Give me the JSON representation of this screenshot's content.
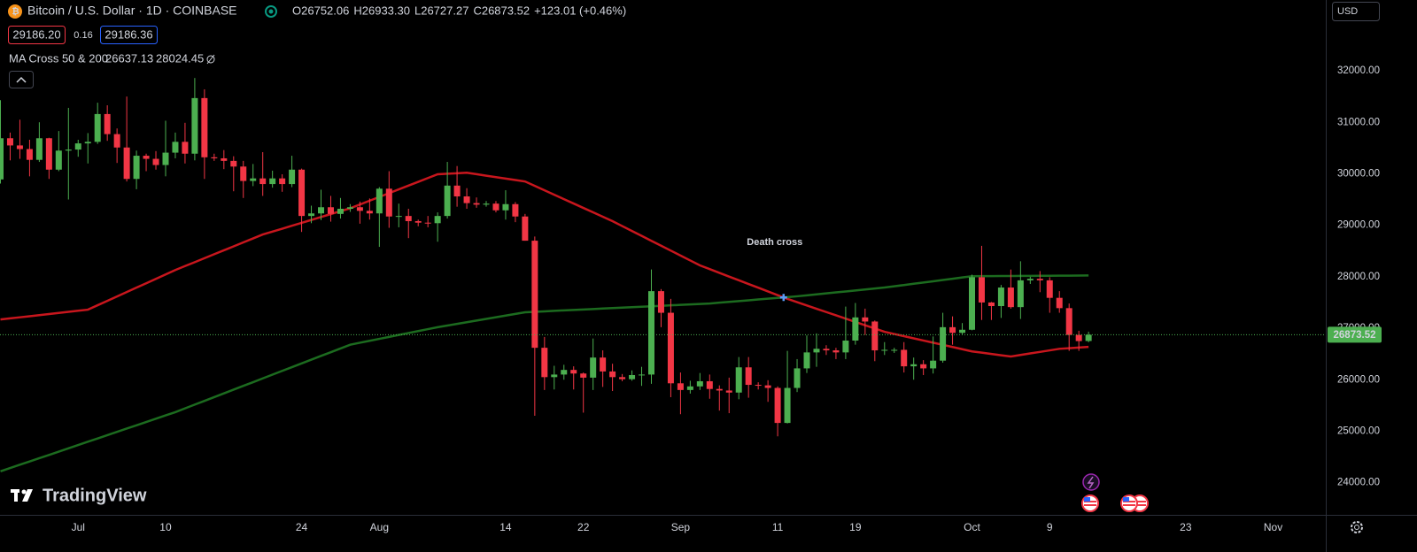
{
  "header": {
    "symbol": "Bitcoin / U.S. Dollar · 1D · COINBASE",
    "ohlc": [
      {
        "label": "O",
        "value": "26752.06"
      },
      {
        "label": "H",
        "value": "26933.30"
      },
      {
        "label": "L",
        "value": "26727.27"
      },
      {
        "label": "C",
        "value": "26873.52"
      }
    ],
    "change": "+123.01 (+0.46%)",
    "sell": "29186.20",
    "spread": "0.16",
    "buy": "29186.36",
    "currency": "USD",
    "brand": "TradingView",
    "indicator": "MA Cross 50 & 200"
  },
  "chart_data": {
    "type": "candlestick",
    "annotation": "Death cross",
    "up_color": "#4caf50",
    "down_color": "#f23645",
    "grid": false,
    "price_line": true,
    "ylim": [
      23375,
      33375
    ],
    "yticks": [
      {
        "value": 24000,
        "label": "24000.00"
      },
      {
        "value": 25000,
        "label": "25000.00"
      },
      {
        "value": 26000,
        "label": "26000.00"
      },
      {
        "value": 27000,
        "label": "27000.00"
      },
      {
        "value": 28000,
        "label": "28000.00"
      },
      {
        "value": 29000,
        "label": "29000.00"
      },
      {
        "value": 30000,
        "label": "30000.00"
      },
      {
        "value": 31000,
        "label": "31000.00"
      },
      {
        "value": 32000,
        "label": "32000.00"
      }
    ],
    "categories": [
      null,
      null,
      null,
      null,
      null,
      null,
      null,
      null,
      "Jul",
      null,
      null,
      null,
      null,
      null,
      null,
      null,
      null,
      "10",
      null,
      null,
      null,
      null,
      null,
      null,
      null,
      null,
      null,
      null,
      null,
      null,
      null,
      "24",
      null,
      null,
      null,
      null,
      null,
      null,
      null,
      "Aug",
      null,
      null,
      null,
      null,
      null,
      null,
      null,
      null,
      null,
      null,
      null,
      null,
      "14",
      null,
      null,
      null,
      null,
      null,
      null,
      null,
      "22",
      null,
      null,
      null,
      null,
      null,
      null,
      null,
      null,
      null,
      "Sep",
      null,
      null,
      null,
      null,
      null,
      null,
      null,
      null,
      null,
      "11",
      null,
      null,
      null,
      null,
      null,
      null,
      null,
      "19",
      null,
      null,
      null,
      null,
      null,
      null,
      null,
      null,
      null,
      null,
      null,
      "Oct",
      null,
      null,
      null,
      null,
      null,
      null,
      null,
      "9",
      null,
      null,
      null,
      null,
      null,
      null,
      null,
      null,
      null,
      null,
      null,
      null,
      null,
      "23",
      null,
      null,
      null,
      null,
      null,
      null,
      null,
      null,
      "Nov",
      null,
      null,
      null,
      null,
      null
    ],
    "open": [
      29890,
      30690,
      30550,
      30480,
      30270,
      30690,
      30080,
      30450,
      30470,
      30590,
      30620,
      31160,
      30770,
      30510,
      29900,
      30350,
      30290,
      30170,
      30410,
      30620,
      30390,
      31470,
      30320,
      30300,
      30250,
      30140,
      29860,
      29910,
      29800,
      29910,
      29800,
      30080,
      29180,
      29230,
      29350,
      29220,
      29320,
      29350,
      29280,
      29230,
      29710,
      29170,
      29180,
      29080,
      29050,
      29040,
      29180,
      29770,
      29560,
      29430,
      29400,
      29420,
      29290,
      29410,
      29170,
      28700,
      26620,
      26050,
      26100,
      26190,
      26120,
      26040,
      26430,
      26160,
      26050,
      26010,
      26090,
      26100,
      27720,
      27300,
      25930,
      25800,
      25870,
      25970,
      25820,
      25790,
      25750,
      26240,
      25900,
      25890,
      25840,
      25160,
      25840,
      26220,
      26530,
      26600,
      26570,
      26530,
      26760,
      27210,
      27130,
      26570,
      26580,
      26580,
      26260,
      26300,
      26220,
      26370,
      27020,
      26910,
      26970,
      27990,
      27500,
      27430,
      27790,
      27410,
      27930,
      27960,
      27930,
      27590,
      27390,
      26870,
      26752.06,
      null,
      null,
      null,
      null,
      null,
      null,
      null,
      null,
      null,
      null,
      null,
      null,
      null,
      null,
      null,
      null,
      null,
      null,
      null,
      null,
      null,
      null,
      null,
      null
    ],
    "high": [
      31430,
      30800,
      31050,
      30660,
      31000,
      30700,
      30830,
      31280,
      30660,
      30790,
      31380,
      31330,
      30880,
      31500,
      30450,
      30390,
      30440,
      31030,
      30800,
      30990,
      31860,
      31640,
      30390,
      30460,
      30340,
      30250,
      30190,
      30420,
      30060,
      29990,
      30350,
      30100,
      29380,
      29690,
      29570,
      29530,
      29410,
      29460,
      29520,
      29740,
      30050,
      29420,
      29320,
      29110,
      29180,
      29250,
      30230,
      30150,
      29720,
      29540,
      29470,
      29470,
      29680,
      29450,
      29220,
      28780,
      26830,
      26270,
      26290,
      26260,
      26140,
      26800,
      26570,
      26310,
      26110,
      26180,
      26250,
      28140,
      27760,
      27570,
      26140,
      25980,
      26130,
      26100,
      25890,
      26040,
      26440,
      26440,
      25950,
      25990,
      25870,
      26560,
      26400,
      26860,
      26900,
      26670,
      26620,
      27420,
      27490,
      27380,
      27150,
      26730,
      26620,
      26730,
      26430,
      26380,
      26840,
      27300,
      27230,
      27100,
      28040,
      28600,
      27510,
      27840,
      28140,
      28300,
      28000,
      28110,
      27990,
      27720,
      27480,
      26950,
      26933.3,
      null,
      null,
      null,
      null,
      null,
      null,
      null,
      null,
      null,
      null,
      null,
      null,
      null,
      null,
      null,
      null,
      null,
      null,
      null,
      null,
      null,
      null,
      null,
      null
    ],
    "low": [
      29810,
      30260,
      30290,
      29950,
      30230,
      29900,
      30050,
      29500,
      30330,
      30200,
      30580,
      30640,
      30210,
      29850,
      29700,
      30050,
      30080,
      29950,
      30300,
      30200,
      30260,
      29900,
      30250,
      30090,
      29660,
      29530,
      29760,
      29570,
      29730,
      29650,
      29740,
      28870,
      29040,
      29100,
      29070,
      29130,
      29260,
      29030,
      29110,
      28580,
      28950,
      28960,
      28750,
      28980,
      28960,
      28680,
      29130,
      29360,
      29320,
      29340,
      29360,
      29250,
      29110,
      29060,
      28700,
      25300,
      25800,
      25810,
      26000,
      25810,
      25360,
      25800,
      25860,
      25780,
      25970,
      25980,
      25880,
      25920,
      27020,
      25660,
      25330,
      25730,
      25800,
      25630,
      25400,
      25350,
      25620,
      25650,
      25810,
      25570,
      24900,
      25150,
      25760,
      26130,
      26250,
      26480,
      26400,
      26400,
      26680,
      26870,
      26360,
      26480,
      26520,
      26140,
      26000,
      26090,
      26120,
      26330,
      26680,
      26880,
      26960,
      27160,
      27160,
      27200,
      27380,
      27180,
      27860,
      27700,
      27300,
      27300,
      26560,
      26560,
      26727.27,
      null,
      null,
      null,
      null,
      null,
      null,
      null,
      null,
      null,
      null,
      null,
      null,
      null,
      null,
      null,
      null,
      null,
      null,
      null,
      null,
      null,
      null,
      null,
      null
    ],
    "close": [
      30690,
      30550,
      30480,
      30270,
      30690,
      30080,
      30450,
      30470,
      30590,
      30620,
      31160,
      30770,
      30510,
      29900,
      30350,
      30290,
      30170,
      30410,
      30620,
      30390,
      31470,
      30320,
      30300,
      30250,
      30140,
      29860,
      29910,
      29800,
      29910,
      29800,
      30080,
      29180,
      29230,
      29350,
      29220,
      29320,
      29350,
      29280,
      29230,
      29710,
      29170,
      29180,
      29080,
      29050,
      29040,
      29180,
      29770,
      29560,
      29430,
      29400,
      29420,
      29290,
      29410,
      29170,
      28700,
      26620,
      26050,
      26100,
      26190,
      26120,
      26040,
      26430,
      26160,
      26050,
      26010,
      26090,
      26100,
      27720,
      27300,
      25930,
      25800,
      25870,
      25970,
      25820,
      25790,
      25750,
      26240,
      25900,
      25890,
      25840,
      25160,
      25840,
      26220,
      26530,
      26600,
      26570,
      26530,
      26760,
      27210,
      27130,
      26570,
      26580,
      26580,
      26260,
      26300,
      26220,
      26370,
      27020,
      26910,
      26970,
      27990,
      27500,
      27430,
      27790,
      27410,
      27930,
      27960,
      27930,
      27590,
      27390,
      26870,
      26750,
      26873.52,
      null,
      null,
      null,
      null,
      null,
      null,
      null,
      null,
      null,
      null,
      null,
      null,
      null,
      null,
      null,
      null,
      null,
      null,
      null,
      null,
      null,
      null,
      null,
      null
    ],
    "series": [
      {
        "color": "#c8161d",
        "values": [
          27170,
          27191,
          27212,
          27233,
          27254,
          27276,
          27297,
          27318,
          27339,
          27360,
          27446,
          27531,
          27617,
          27702,
          27788,
          27873,
          27959,
          28044,
          28130,
          28207,
          28283,
          28360,
          28437,
          28513,
          28590,
          28667,
          28743,
          28820,
          28877,
          28933,
          28990,
          29047,
          29103,
          29160,
          29217,
          29273,
          29330,
          29403,
          29477,
          29550,
          29623,
          29697,
          29770,
          29843,
          29917,
          29990,
          30000,
          30010,
          30020,
          29992,
          29963,
          29935,
          29907,
          29878,
          29850,
          29764,
          29679,
          29593,
          29507,
          29422,
          29336,
          29251,
          29165,
          29080,
          28984,
          28889,
          28793,
          28698,
          28602,
          28507,
          28411,
          28316,
          28220,
          28148,
          28076,
          28003,
          27931,
          27859,
          27787,
          27714,
          27642,
          27570,
          27506,
          27442,
          27378,
          27314,
          27250,
          27186,
          27122,
          27058,
          26994,
          26930,
          26888,
          26846,
          26803,
          26761,
          26719,
          26677,
          26635,
          26592,
          26550,
          26525,
          26500,
          26475,
          26450,
          26480,
          26510,
          26540,
          26570,
          26600,
          26612,
          26625,
          26637.13,
          null,
          null,
          null,
          null,
          null,
          null,
          null,
          null,
          null,
          null,
          null,
          null,
          null,
          null,
          null,
          null,
          null,
          null,
          null,
          null,
          null,
          null,
          null,
          null
        ]
      },
      {
        "color": "#1c6b1f",
        "values": [
          24220,
          24284,
          24348,
          24412,
          24476,
          24539,
          24603,
          24667,
          24731,
          24795,
          24859,
          24923,
          24987,
          25051,
          25114,
          25178,
          25242,
          25306,
          25370,
          25443,
          25516,
          25588,
          25661,
          25734,
          25807,
          25880,
          25952,
          26025,
          26098,
          26171,
          26243,
          26316,
          26389,
          26462,
          26534,
          26607,
          26680,
          26718,
          26756,
          26793,
          26831,
          26869,
          26907,
          26944,
          26982,
          27020,
          27052,
          27084,
          27117,
          27149,
          27181,
          27213,
          27246,
          27278,
          27310,
          27319,
          27328,
          27337,
          27346,
          27355,
          27364,
          27373,
          27382,
          27391,
          27400,
          27409,
          27417,
          27426,
          27435,
          27444,
          27453,
          27462,
          27471,
          27480,
          27496,
          27511,
          27527,
          27542,
          27558,
          27573,
          27589,
          27604,
          27620,
          27639,
          27658,
          27677,
          27696,
          27714,
          27733,
          27752,
          27771,
          27790,
          27814,
          27839,
          27863,
          27888,
          27912,
          27937,
          27961,
          27986,
          28010,
          28011,
          28012,
          28014,
          28015,
          28016,
          28017,
          28018,
          28019,
          28020,
          28021,
          28022,
          28024.45,
          null,
          null,
          null,
          null,
          null,
          null,
          null,
          null,
          null,
          null,
          null,
          null,
          null,
          null,
          null,
          null,
          null,
          null,
          null,
          null,
          null,
          null,
          null,
          null
        ]
      }
    ]
  }
}
